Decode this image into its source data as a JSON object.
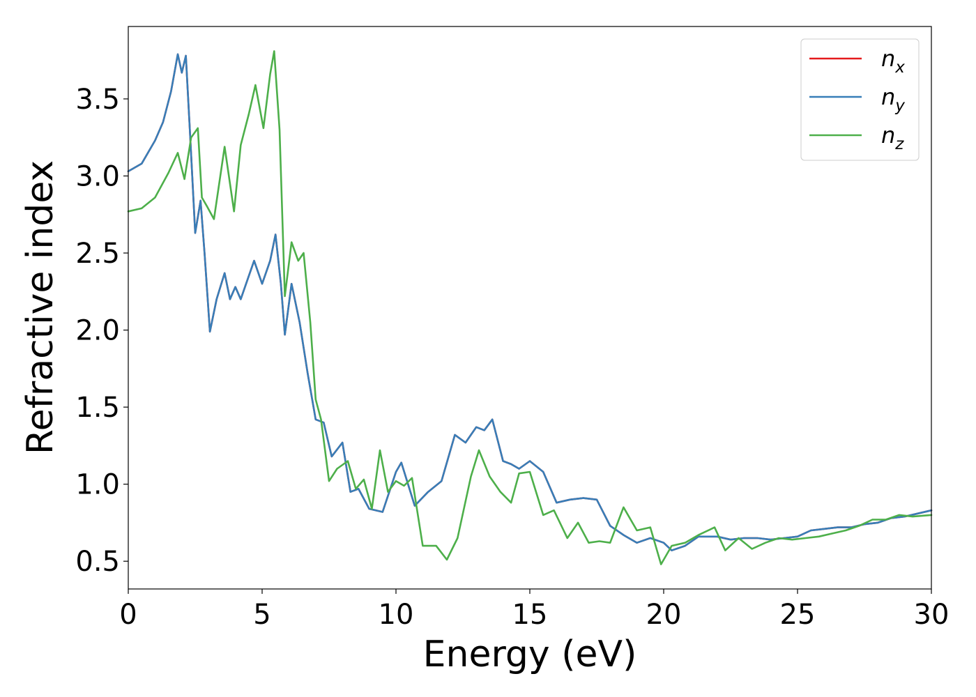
{
  "chart_data": {
    "type": "line",
    "title": "",
    "xlabel": "Energy (eV)",
    "ylabel": "Refractive index",
    "xlim": [
      0,
      30
    ],
    "ylim": [
      0.32,
      3.97
    ],
    "xticks": [
      0,
      5,
      10,
      15,
      20,
      25,
      30
    ],
    "xtick_labels": [
      "0",
      "5",
      "10",
      "15",
      "20",
      "25",
      "30"
    ],
    "yticks": [
      0.5,
      1.0,
      1.5,
      2.0,
      2.5,
      3.0,
      3.5
    ],
    "ytick_labels": [
      "0.5",
      "1.0",
      "1.5",
      "2.0",
      "2.5",
      "3.0",
      "3.5"
    ],
    "grid": false,
    "legend": {
      "placement": "top-right",
      "entries": [
        {
          "base": "n",
          "sub": "x"
        },
        {
          "base": "n",
          "sub": "y"
        },
        {
          "base": "n",
          "sub": "z"
        }
      ]
    },
    "series": [
      {
        "name": "n_x",
        "color": "#e41a1c",
        "x": [
          0,
          0.5,
          1.0,
          1.3,
          1.6,
          1.85,
          2.0,
          2.15,
          2.3,
          2.5,
          2.7,
          2.85,
          3.05,
          3.3,
          3.6,
          3.8,
          4.0,
          4.2,
          4.5,
          4.7,
          5.0,
          5.3,
          5.5,
          5.7,
          5.85,
          6.1,
          6.4,
          6.7,
          7.0,
          7.3,
          7.6,
          8.0,
          8.3,
          8.6,
          9.0,
          9.5,
          10.0,
          10.2,
          10.7,
          11.2,
          11.7,
          12.2,
          12.6,
          13.0,
          13.3,
          13.6,
          14.0,
          14.3,
          14.6,
          15.0,
          15.5,
          16.0,
          16.5,
          17.0,
          17.5,
          18.0,
          18.5,
          19.0,
          19.5,
          20.0,
          20.3,
          20.8,
          21.3,
          22.0,
          22.5,
          23.0,
          23.5,
          24.0,
          24.5,
          25.0,
          25.5,
          26.0,
          26.5,
          27.0,
          27.5,
          28.0,
          28.5,
          29.0,
          29.5,
          30.0
        ],
        "y": [
          3.03,
          3.08,
          3.23,
          3.35,
          3.55,
          3.79,
          3.67,
          3.78,
          3.3,
          2.63,
          2.84,
          2.5,
          1.99,
          2.2,
          2.37,
          2.2,
          2.28,
          2.2,
          2.35,
          2.45,
          2.3,
          2.45,
          2.62,
          2.3,
          1.97,
          2.3,
          2.05,
          1.72,
          1.42,
          1.4,
          1.18,
          1.27,
          0.95,
          0.97,
          0.84,
          0.82,
          1.08,
          1.14,
          0.86,
          0.95,
          1.02,
          1.32,
          1.27,
          1.37,
          1.35,
          1.42,
          1.15,
          1.13,
          1.1,
          1.15,
          1.08,
          0.88,
          0.9,
          0.91,
          0.9,
          0.73,
          0.67,
          0.62,
          0.65,
          0.62,
          0.57,
          0.6,
          0.66,
          0.66,
          0.64,
          0.65,
          0.65,
          0.64,
          0.65,
          0.66,
          0.7,
          0.71,
          0.72,
          0.72,
          0.74,
          0.75,
          0.78,
          0.79,
          0.81,
          0.83
        ]
      },
      {
        "name": "n_y",
        "color": "#377eb8",
        "x": [
          0,
          0.5,
          1.0,
          1.3,
          1.6,
          1.85,
          2.0,
          2.15,
          2.3,
          2.5,
          2.7,
          2.85,
          3.05,
          3.3,
          3.6,
          3.8,
          4.0,
          4.2,
          4.5,
          4.7,
          5.0,
          5.3,
          5.5,
          5.7,
          5.85,
          6.1,
          6.4,
          6.7,
          7.0,
          7.3,
          7.6,
          8.0,
          8.3,
          8.6,
          9.0,
          9.5,
          10.0,
          10.2,
          10.7,
          11.2,
          11.7,
          12.2,
          12.6,
          13.0,
          13.3,
          13.6,
          14.0,
          14.3,
          14.6,
          15.0,
          15.5,
          16.0,
          16.5,
          17.0,
          17.5,
          18.0,
          18.5,
          19.0,
          19.5,
          20.0,
          20.3,
          20.8,
          21.3,
          22.0,
          22.5,
          23.0,
          23.5,
          24.0,
          24.5,
          25.0,
          25.5,
          26.0,
          26.5,
          27.0,
          27.5,
          28.0,
          28.5,
          29.0,
          29.5,
          30.0
        ],
        "y": [
          3.03,
          3.08,
          3.23,
          3.35,
          3.55,
          3.79,
          3.67,
          3.78,
          3.3,
          2.63,
          2.84,
          2.5,
          1.99,
          2.2,
          2.37,
          2.2,
          2.28,
          2.2,
          2.35,
          2.45,
          2.3,
          2.45,
          2.62,
          2.3,
          1.97,
          2.3,
          2.05,
          1.72,
          1.42,
          1.4,
          1.18,
          1.27,
          0.95,
          0.97,
          0.84,
          0.82,
          1.08,
          1.14,
          0.86,
          0.95,
          1.02,
          1.32,
          1.27,
          1.37,
          1.35,
          1.42,
          1.15,
          1.13,
          1.1,
          1.15,
          1.08,
          0.88,
          0.9,
          0.91,
          0.9,
          0.73,
          0.67,
          0.62,
          0.65,
          0.62,
          0.57,
          0.6,
          0.66,
          0.66,
          0.64,
          0.65,
          0.65,
          0.64,
          0.65,
          0.66,
          0.7,
          0.71,
          0.72,
          0.72,
          0.74,
          0.75,
          0.78,
          0.79,
          0.81,
          0.83
        ]
      },
      {
        "name": "n_z",
        "color": "#4daf4a",
        "x": [
          0,
          0.5,
          1.0,
          1.5,
          1.85,
          2.1,
          2.35,
          2.6,
          2.75,
          2.95,
          3.2,
          3.6,
          3.95,
          4.2,
          4.5,
          4.75,
          5.05,
          5.3,
          5.45,
          5.65,
          5.85,
          6.1,
          6.35,
          6.55,
          6.8,
          7.0,
          7.2,
          7.5,
          7.8,
          8.2,
          8.5,
          8.8,
          9.1,
          9.4,
          9.7,
          10.0,
          10.3,
          10.6,
          11.0,
          11.5,
          11.9,
          12.3,
          12.8,
          13.1,
          13.5,
          13.9,
          14.3,
          14.6,
          15.0,
          15.5,
          15.9,
          16.4,
          16.8,
          17.2,
          17.6,
          18.0,
          18.5,
          19.0,
          19.5,
          19.9,
          20.3,
          20.8,
          21.3,
          21.9,
          22.3,
          22.8,
          23.3,
          23.8,
          24.3,
          24.8,
          25.3,
          25.8,
          26.3,
          26.8,
          27.3,
          27.8,
          28.3,
          28.8,
          29.3,
          30.0
        ],
        "y": [
          2.77,
          2.79,
          2.86,
          3.02,
          3.15,
          2.98,
          3.25,
          3.31,
          2.86,
          2.8,
          2.72,
          3.19,
          2.77,
          3.2,
          3.4,
          3.59,
          3.31,
          3.66,
          3.81,
          3.3,
          2.22,
          2.57,
          2.45,
          2.5,
          2.05,
          1.55,
          1.42,
          1.02,
          1.1,
          1.15,
          0.97,
          1.03,
          0.84,
          1.22,
          0.95,
          1.02,
          0.99,
          1.04,
          0.6,
          0.6,
          0.51,
          0.65,
          1.05,
          1.22,
          1.05,
          0.95,
          0.88,
          1.07,
          1.08,
          0.8,
          0.83,
          0.65,
          0.75,
          0.62,
          0.63,
          0.62,
          0.85,
          0.7,
          0.72,
          0.48,
          0.6,
          0.62,
          0.67,
          0.72,
          0.57,
          0.65,
          0.58,
          0.62,
          0.65,
          0.64,
          0.65,
          0.66,
          0.68,
          0.7,
          0.73,
          0.77,
          0.77,
          0.8,
          0.79,
          0.8
        ]
      }
    ]
  }
}
